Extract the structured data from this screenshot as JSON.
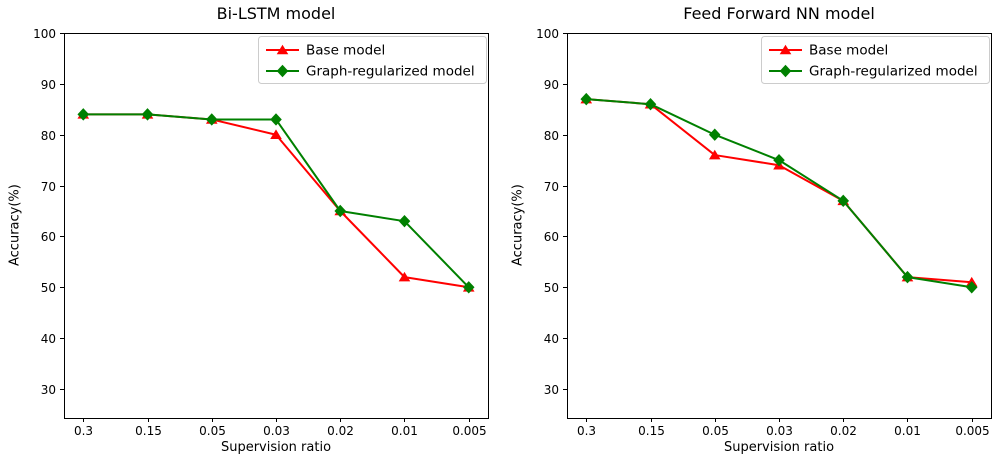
{
  "figure": {
    "background": "#ffffff"
  },
  "chart_data": [
    {
      "type": "line",
      "title": "Bi-LSTM model",
      "xlabel": "Supervision ratio",
      "ylabel": "Accuracy(%)",
      "categories": [
        "0.3",
        "0.15",
        "0.05",
        "0.03",
        "0.02",
        "0.01",
        "0.005"
      ],
      "yticks": [
        30,
        40,
        50,
        60,
        70,
        80,
        90,
        100
      ],
      "ylim": [
        24.3,
        100
      ],
      "grid": false,
      "legend_position": "upper right",
      "series": [
        {
          "name": "Base model",
          "color": "#ff0000",
          "marker": "triangle-up",
          "values": [
            84,
            84,
            83,
            80,
            65,
            52,
            50
          ]
        },
        {
          "name": "Graph-regularized model",
          "color": "#008000",
          "marker": "diamond",
          "values": [
            84,
            84,
            83,
            83,
            65,
            63,
            50
          ]
        }
      ]
    },
    {
      "type": "line",
      "title": "Feed Forward NN model",
      "xlabel": "Supervision ratio",
      "ylabel": "Accuracy(%)",
      "categories": [
        "0.3",
        "0.15",
        "0.05",
        "0.03",
        "0.02",
        "0.01",
        "0.005"
      ],
      "yticks": [
        30,
        40,
        50,
        60,
        70,
        80,
        90,
        100
      ],
      "ylim": [
        24.3,
        100
      ],
      "grid": false,
      "legend_position": "upper right",
      "series": [
        {
          "name": "Base model",
          "color": "#ff0000",
          "marker": "triangle-up",
          "values": [
            87,
            86,
            76,
            74,
            67,
            52,
            51
          ]
        },
        {
          "name": "Graph-regularized model",
          "color": "#008000",
          "marker": "diamond",
          "values": [
            87,
            86,
            80,
            75,
            67,
            52,
            50
          ]
        }
      ]
    }
  ]
}
